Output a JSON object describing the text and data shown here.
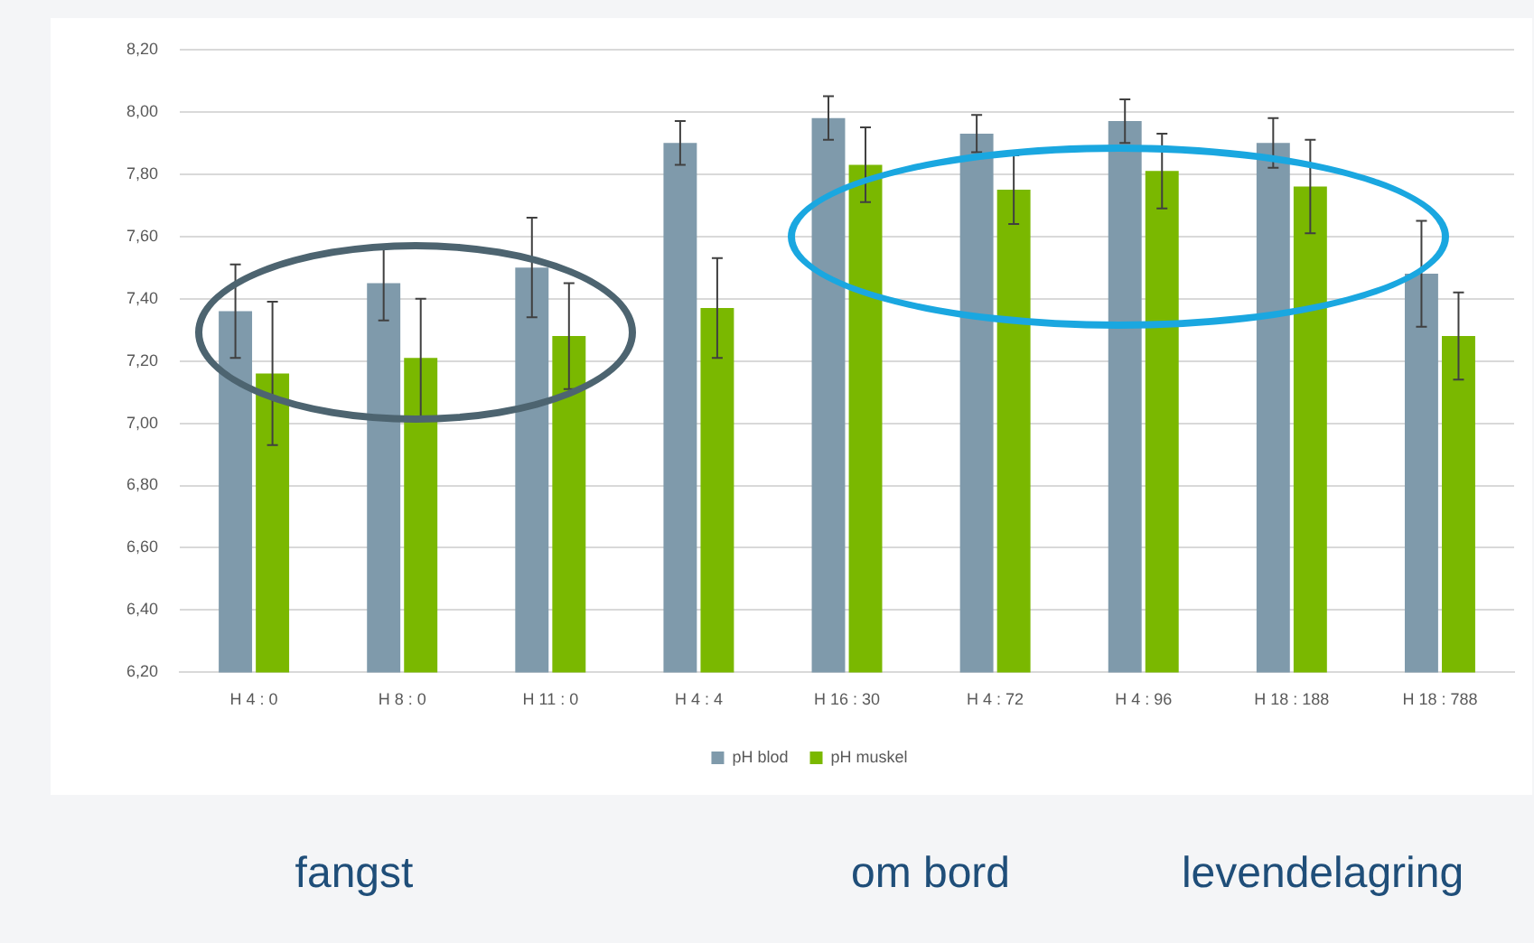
{
  "chart_data": {
    "type": "bar",
    "categories": [
      "H 4 : 0",
      "H 8 : 0",
      "H 11 : 0",
      "H 4 : 4",
      "H 16 : 30",
      "H 4 : 72",
      "H 4 : 96",
      "H 18 : 188",
      "H 18 : 788"
    ],
    "series": [
      {
        "name": "pH blod",
        "color": "#7f9aab",
        "values": [
          7.36,
          7.45,
          7.5,
          7.9,
          7.98,
          7.93,
          7.97,
          7.9,
          7.48
        ],
        "errors": [
          0.15,
          0.12,
          0.16,
          0.07,
          0.07,
          0.06,
          0.07,
          0.08,
          0.17
        ]
      },
      {
        "name": "pH muskel",
        "color": "#7ab800",
        "values": [
          7.16,
          7.21,
          7.28,
          7.37,
          7.83,
          7.75,
          7.81,
          7.76,
          7.28
        ],
        "errors": [
          0.23,
          0.19,
          0.17,
          0.16,
          0.12,
          0.11,
          0.12,
          0.15,
          0.14
        ]
      }
    ],
    "ylim": [
      6.2,
      8.2
    ],
    "yticks": [
      {
        "value": 6.2,
        "label": "6,20"
      },
      {
        "value": 6.4,
        "label": "6,40"
      },
      {
        "value": 6.6,
        "label": "6,60"
      },
      {
        "value": 6.8,
        "label": "6,80"
      },
      {
        "value": 7,
        "label": "7,00"
      },
      {
        "value": 7.2,
        "label": "7,20"
      },
      {
        "value": 7.4,
        "label": "7,40"
      },
      {
        "value": 7.6,
        "label": "7,60"
      },
      {
        "value": 7.8,
        "label": "7,80"
      },
      {
        "value": 8,
        "label": "8,00"
      },
      {
        "value": 8.2,
        "label": "8,20"
      }
    ],
    "grid": "y",
    "legend": "bottom",
    "annotations": [
      "fangst",
      "om bord",
      "levendelagring"
    ]
  }
}
